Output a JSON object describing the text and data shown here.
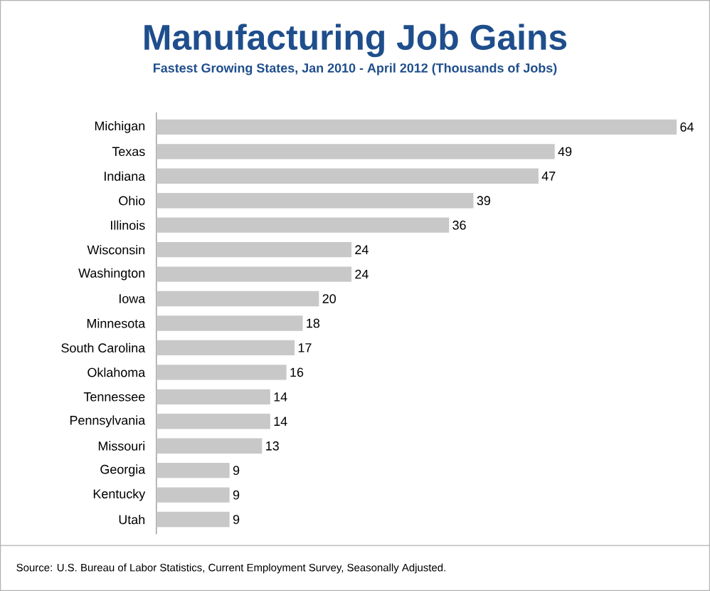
{
  "chart_data": {
    "type": "bar",
    "orientation": "horizontal",
    "title": "Manufacturing Job Gains",
    "subtitle": "Fastest Growing States, Jan 2010 - April 2012 (Thousands of Jobs)",
    "categories": [
      "Michigan",
      "Texas",
      "Indiana",
      "Ohio",
      "Illinois",
      "Wisconsin",
      "Washington",
      "Iowa",
      "Minnesota",
      "South Carolina",
      "Oklahoma",
      "Tennessee",
      "Pennsylvania",
      "Missouri",
      "Georgia",
      "Kentucky",
      "Utah"
    ],
    "values": [
      64,
      49,
      47,
      39,
      36,
      24,
      24,
      20,
      18,
      17,
      16,
      14,
      14,
      13,
      9,
      9,
      9
    ],
    "color": "#c8c8c8",
    "data_labels": true,
    "tick_labels": "y",
    "annotations": [
      "Source: U.S. Bureau of Labor Statistics, Current Employment Survey, Seasonally Adjusted."
    ]
  }
}
